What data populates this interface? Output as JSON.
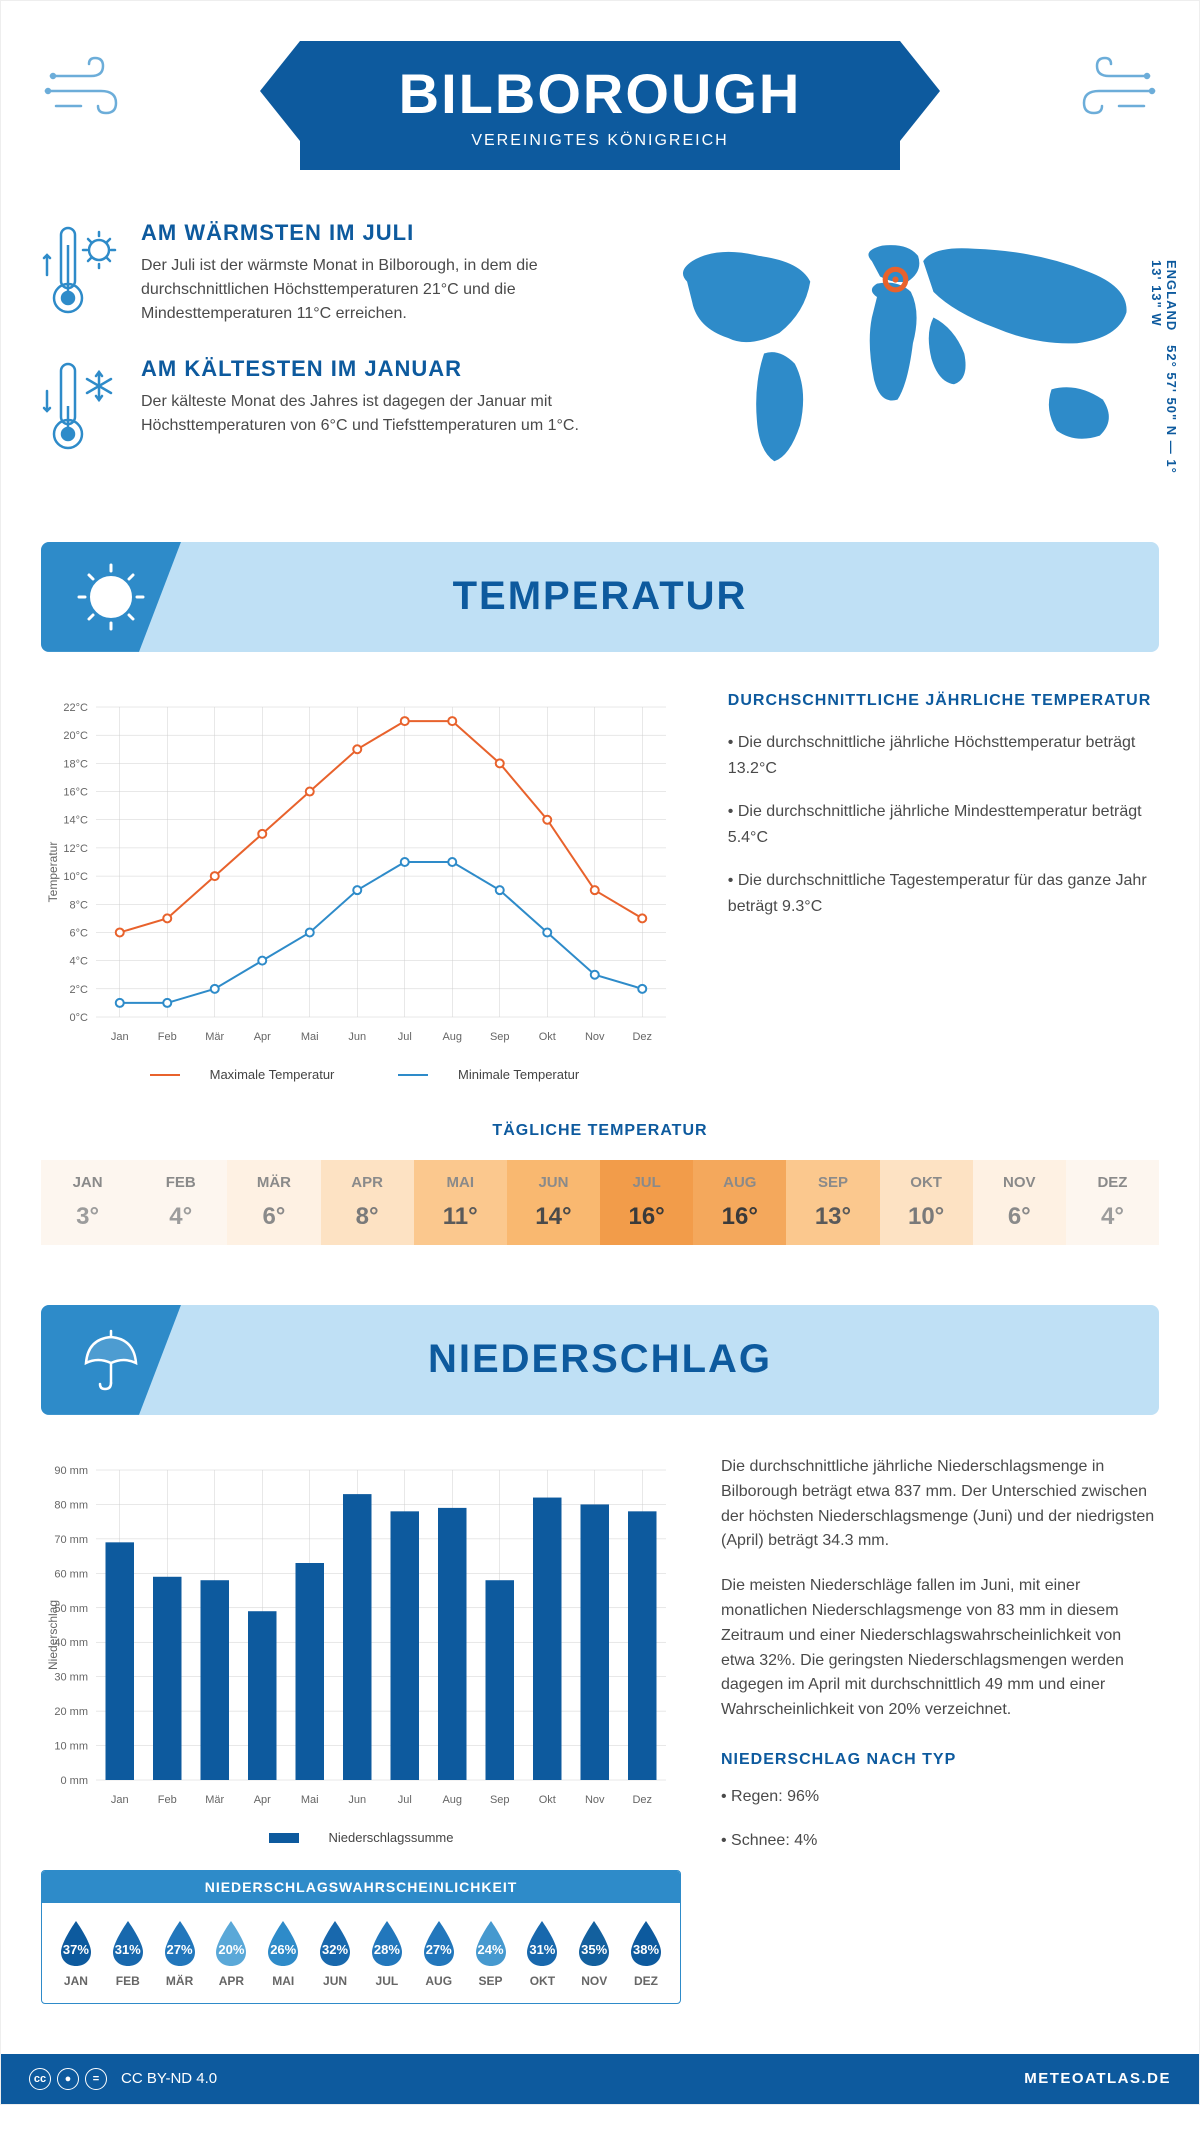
{
  "header": {
    "city": "BILBOROUGH",
    "country": "VEREINIGTES KÖNIGREICH"
  },
  "coords": "52° 57' 50\" N — 1° 13' 13\" W",
  "coords_region": "ENGLAND",
  "fact_warm": {
    "title": "AM WÄRMSTEN IM JULI",
    "text": "Der Juli ist der wärmste Monat in Bilborough, in dem die durchschnittlichen Höchsttemperaturen 21°C und die Mindesttemperaturen 11°C erreichen."
  },
  "fact_cold": {
    "title": "AM KÄLTESTEN IM JANUAR",
    "text": "Der kälteste Monat des Jahres ist dagegen der Januar mit Höchsttemperaturen von 6°C und Tiefsttemperaturen um 1°C."
  },
  "temperature_section": {
    "title": "TEMPERATUR",
    "info_title": "DURCHSCHNITTLICHE JÄHRLICHE TEMPERATUR",
    "bullet1": "• Die durchschnittliche jährliche Höchsttemperatur beträgt 13.2°C",
    "bullet2": "• Die durchschnittliche jährliche Mindesttemperatur beträgt 5.4°C",
    "bullet3": "• Die durchschnittliche Tagestemperatur für das ganze Jahr beträgt 9.3°C",
    "chart": {
      "months": [
        "Jan",
        "Feb",
        "Mär",
        "Apr",
        "Mai",
        "Jun",
        "Jul",
        "Aug",
        "Sep",
        "Okt",
        "Nov",
        "Dez"
      ],
      "max_temp": [
        6,
        7,
        10,
        13,
        16,
        19,
        21,
        21,
        18,
        14,
        9,
        7
      ],
      "min_temp": [
        1,
        1,
        2,
        4,
        6,
        9,
        11,
        11,
        9,
        6,
        3,
        2
      ],
      "max_color": "#e8622c",
      "min_color": "#2e8bc9",
      "ylim": [
        0,
        22
      ],
      "ytick_step": 2,
      "y_axis_label": "Temperatur",
      "legend_max": "Maximale Temperatur",
      "legend_min": "Minimale Temperatur",
      "grid_color": "#d0d0d0",
      "background_color": "#ffffff"
    },
    "daily": {
      "title": "TÄGLICHE TEMPERATUR",
      "months": [
        "JAN",
        "FEB",
        "MÄR",
        "APR",
        "MAI",
        "JUN",
        "JUL",
        "AUG",
        "SEP",
        "OKT",
        "NOV",
        "DEZ"
      ],
      "values": [
        "3°",
        "4°",
        "6°",
        "8°",
        "11°",
        "14°",
        "16°",
        "16°",
        "13°",
        "10°",
        "6°",
        "4°"
      ],
      "bg_colors": [
        "#fdf6ef",
        "#fdf6ef",
        "#fef1e3",
        "#fde2c3",
        "#fbc88e",
        "#f9b870",
        "#f29c4a",
        "#f4a85c",
        "#fbc88e",
        "#fde2c3",
        "#fef1e3",
        "#fdf6ef"
      ],
      "text_colors": [
        "#9c9c9c",
        "#9c9c9c",
        "#8a8a8a",
        "#7a7a7a",
        "#5a5a5a",
        "#4a4a4a",
        "#3a3a3a",
        "#3a3a3a",
        "#5a5a5a",
        "#7a7a7a",
        "#8a8a8a",
        "#9c9c9c"
      ]
    }
  },
  "precipitation_section": {
    "title": "NIEDERSCHLAG",
    "chart": {
      "months": [
        "Jan",
        "Feb",
        "Mär",
        "Apr",
        "Mai",
        "Jun",
        "Jul",
        "Aug",
        "Sep",
        "Okt",
        "Nov",
        "Dez"
      ],
      "values": [
        69,
        59,
        58,
        49,
        63,
        83,
        78,
        79,
        58,
        82,
        80,
        78
      ],
      "bar_color": "#0d5a9e",
      "ylim": [
        0,
        90
      ],
      "ytick_step": 10,
      "y_axis_label": "Niederschlag",
      "legend": "Niederschlagssumme",
      "grid_color": "#d0d0d0"
    },
    "text1": "Die durchschnittliche jährliche Niederschlagsmenge in Bilborough beträgt etwa 837 mm. Der Unterschied zwischen der höchsten Niederschlagsmenge (Juni) und der niedrigsten (April) beträgt 34.3 mm.",
    "text2": "Die meisten Niederschläge fallen im Juni, mit einer monatlichen Niederschlagsmenge von 83 mm in diesem Zeitraum und einer Niederschlagswahrscheinlichkeit von etwa 32%. Die geringsten Niederschlagsmengen werden dagegen im April mit durchschnittlich 49 mm und einer Wahrscheinlichkeit von 20% verzeichnet.",
    "type_title": "NIEDERSCHLAG NACH TYP",
    "type1": "• Regen: 96%",
    "type2": "• Schnee: 4%",
    "probability": {
      "title": "NIEDERSCHLAGSWAHRSCHEINLICHKEIT",
      "months": [
        "JAN",
        "FEB",
        "MÄR",
        "APR",
        "MAI",
        "JUN",
        "JUL",
        "AUG",
        "SEP",
        "OKT",
        "NOV",
        "DEZ"
      ],
      "values": [
        "37%",
        "31%",
        "27%",
        "20%",
        "26%",
        "32%",
        "28%",
        "27%",
        "24%",
        "31%",
        "35%",
        "38%"
      ],
      "colors": [
        "#0d5a9e",
        "#1868ad",
        "#2277bc",
        "#5aa8d8",
        "#2e8bc9",
        "#1868ad",
        "#2277bc",
        "#2277bc",
        "#4699cf",
        "#1868ad",
        "#13609e",
        "#0d5a9e"
      ]
    }
  },
  "footer": {
    "license": "CC BY-ND 4.0",
    "site": "METEOATLAS.DE"
  }
}
